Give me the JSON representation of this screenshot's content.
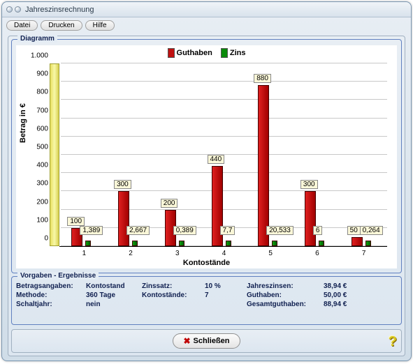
{
  "window": {
    "title": "Jahreszinsrechnung"
  },
  "menu": {
    "datei": "Datei",
    "drucken": "Drucken",
    "hilfe": "Hilfe"
  },
  "fieldsets": {
    "diagram": "Diagramm",
    "results": "Vorgaben - Ergebnisse"
  },
  "chart": {
    "type": "bar",
    "legend": {
      "guthaben": "Guthaben",
      "zins": "Zins"
    },
    "ylabel": "Betrag in €",
    "xlabel": "Kontostände",
    "ylim": [
      0,
      1000
    ],
    "ytick_step": 100,
    "yticks": [
      "0",
      "100",
      "200",
      "300",
      "400",
      "500",
      "600",
      "700",
      "800",
      "900",
      "1.000"
    ],
    "categories": [
      "1",
      "2",
      "3",
      "4",
      "5",
      "6",
      "7"
    ],
    "guthaben_values": [
      100,
      300,
      200,
      440,
      880,
      300,
      50
    ],
    "guthaben_labels": [
      "100",
      "300",
      "200",
      "440",
      "880",
      "300",
      "50"
    ],
    "zins_labels": [
      "1,389",
      "2,667",
      "0,389",
      "7,7",
      "20,533",
      "6",
      "0,264"
    ],
    "colors": {
      "guthaben": "#c01010",
      "zins": "#0a8a0a",
      "background": "#ffffff",
      "grid": "#c8c8c8",
      "pillar": "#f0e878"
    },
    "bar_width_main": 16,
    "bar_width_zins": 8
  },
  "results": {
    "r1c1": "Betragsangaben:",
    "r1c2": "Kontostand",
    "r1c3": "Zinssatz:",
    "r1c4": "10 %",
    "r1c5": "Jahreszinsen:",
    "r1c6": "38,94 €",
    "r2c1": "Methode:",
    "r2c2": "360 Tage",
    "r2c3": "Kontostände:",
    "r2c4": "7",
    "r2c5": "Guthaben:",
    "r2c6": "50,00 €",
    "r3c1": "Schaltjahr:",
    "r3c2": "nein",
    "r3c3": "",
    "r3c4": "",
    "r3c5": "Gesamtguthaben:",
    "r3c6": "88,94 €"
  },
  "footer": {
    "close": "Schließen"
  }
}
